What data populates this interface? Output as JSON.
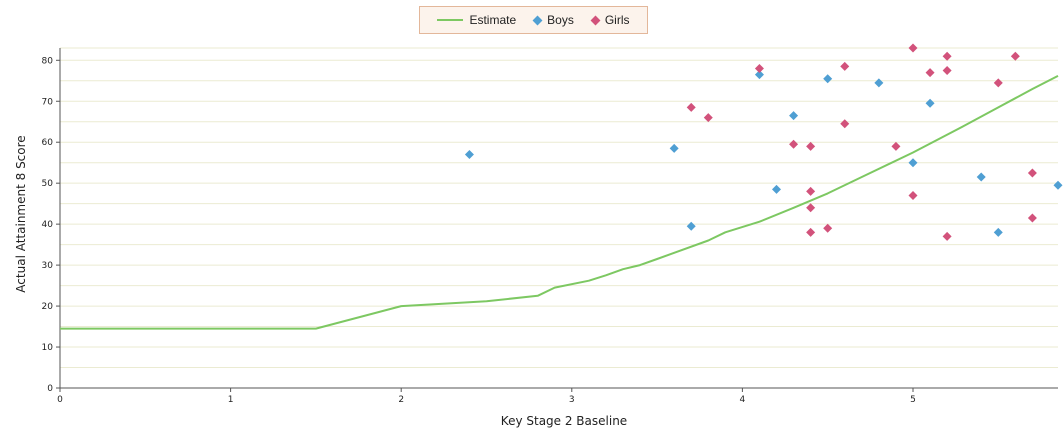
{
  "chart_data": {
    "type": "scatter",
    "xlabel": "Key Stage 2 Baseline",
    "ylabel": "Actual Attainment 8 Score",
    "xlim": [
      0,
      5.85
    ],
    "ylim": [
      0,
      83
    ],
    "x_ticks": [
      0,
      1,
      2,
      3,
      4,
      5
    ],
    "y_ticks": [
      0,
      10,
      20,
      30,
      40,
      50,
      60,
      70,
      80
    ],
    "grid": true,
    "grid_step_y": 5,
    "legend_position": "top-center",
    "series": [
      {
        "name": "Estimate",
        "kind": "line",
        "color": "#7dc862",
        "x": [
          0,
          1.5,
          2,
          2.5,
          2.8,
          2.9,
          3.1,
          3.2,
          3.3,
          3.4,
          3.5,
          3.6,
          3.8,
          3.9,
          4.1,
          4.3,
          4.5,
          4.7,
          5,
          5.3,
          5.5,
          5.7,
          5.85
        ],
        "y": [
          14.5,
          14.5,
          20,
          21.2,
          22.5,
          24.5,
          26.2,
          27.5,
          29,
          30,
          31.5,
          33,
          36,
          38,
          40.6,
          44,
          47.5,
          51.5,
          57.5,
          64,
          68.5,
          73,
          76.2
        ]
      },
      {
        "name": "Boys",
        "kind": "scatter",
        "color": "#4f9fd3",
        "marker": "diamond",
        "x": [
          2.4,
          3.6,
          3.7,
          4.1,
          4.2,
          4.3,
          4.5,
          4.8,
          5.0,
          5.1,
          5.4,
          5.5,
          5.85
        ],
        "y": [
          57,
          58.5,
          39.5,
          76.5,
          48.5,
          66.5,
          75.5,
          74.5,
          55,
          69.5,
          51.5,
          38,
          49.5
        ]
      },
      {
        "name": "Girls",
        "kind": "scatter",
        "color": "#d2527b",
        "marker": "diamond",
        "x": [
          3.7,
          3.8,
          4.1,
          4.3,
          4.4,
          4.4,
          4.4,
          4.4,
          4.5,
          4.6,
          4.6,
          4.9,
          5.0,
          5.0,
          5.1,
          5.2,
          5.2,
          5.2,
          5.5,
          5.6,
          5.7,
          5.7
        ],
        "y": [
          68.5,
          66,
          78,
          59.5,
          59,
          48,
          44,
          38,
          39,
          78.5,
          64.5,
          59,
          83,
          47,
          77,
          81,
          77.5,
          37,
          74.5,
          81,
          52.5,
          41.5
        ]
      }
    ]
  },
  "legend": {
    "items": [
      {
        "label": "Estimate",
        "symbol": "line",
        "color": "#7dc862"
      },
      {
        "label": "Boys",
        "symbol": "diamond",
        "color": "#4f9fd3"
      },
      {
        "label": "Girls",
        "symbol": "diamond",
        "color": "#d2527b"
      }
    ]
  },
  "colors": {
    "grid": "#ebebd2",
    "axis": "#555555",
    "legend_border": "#e3b79a",
    "legend_background": "#fcf3ec"
  }
}
